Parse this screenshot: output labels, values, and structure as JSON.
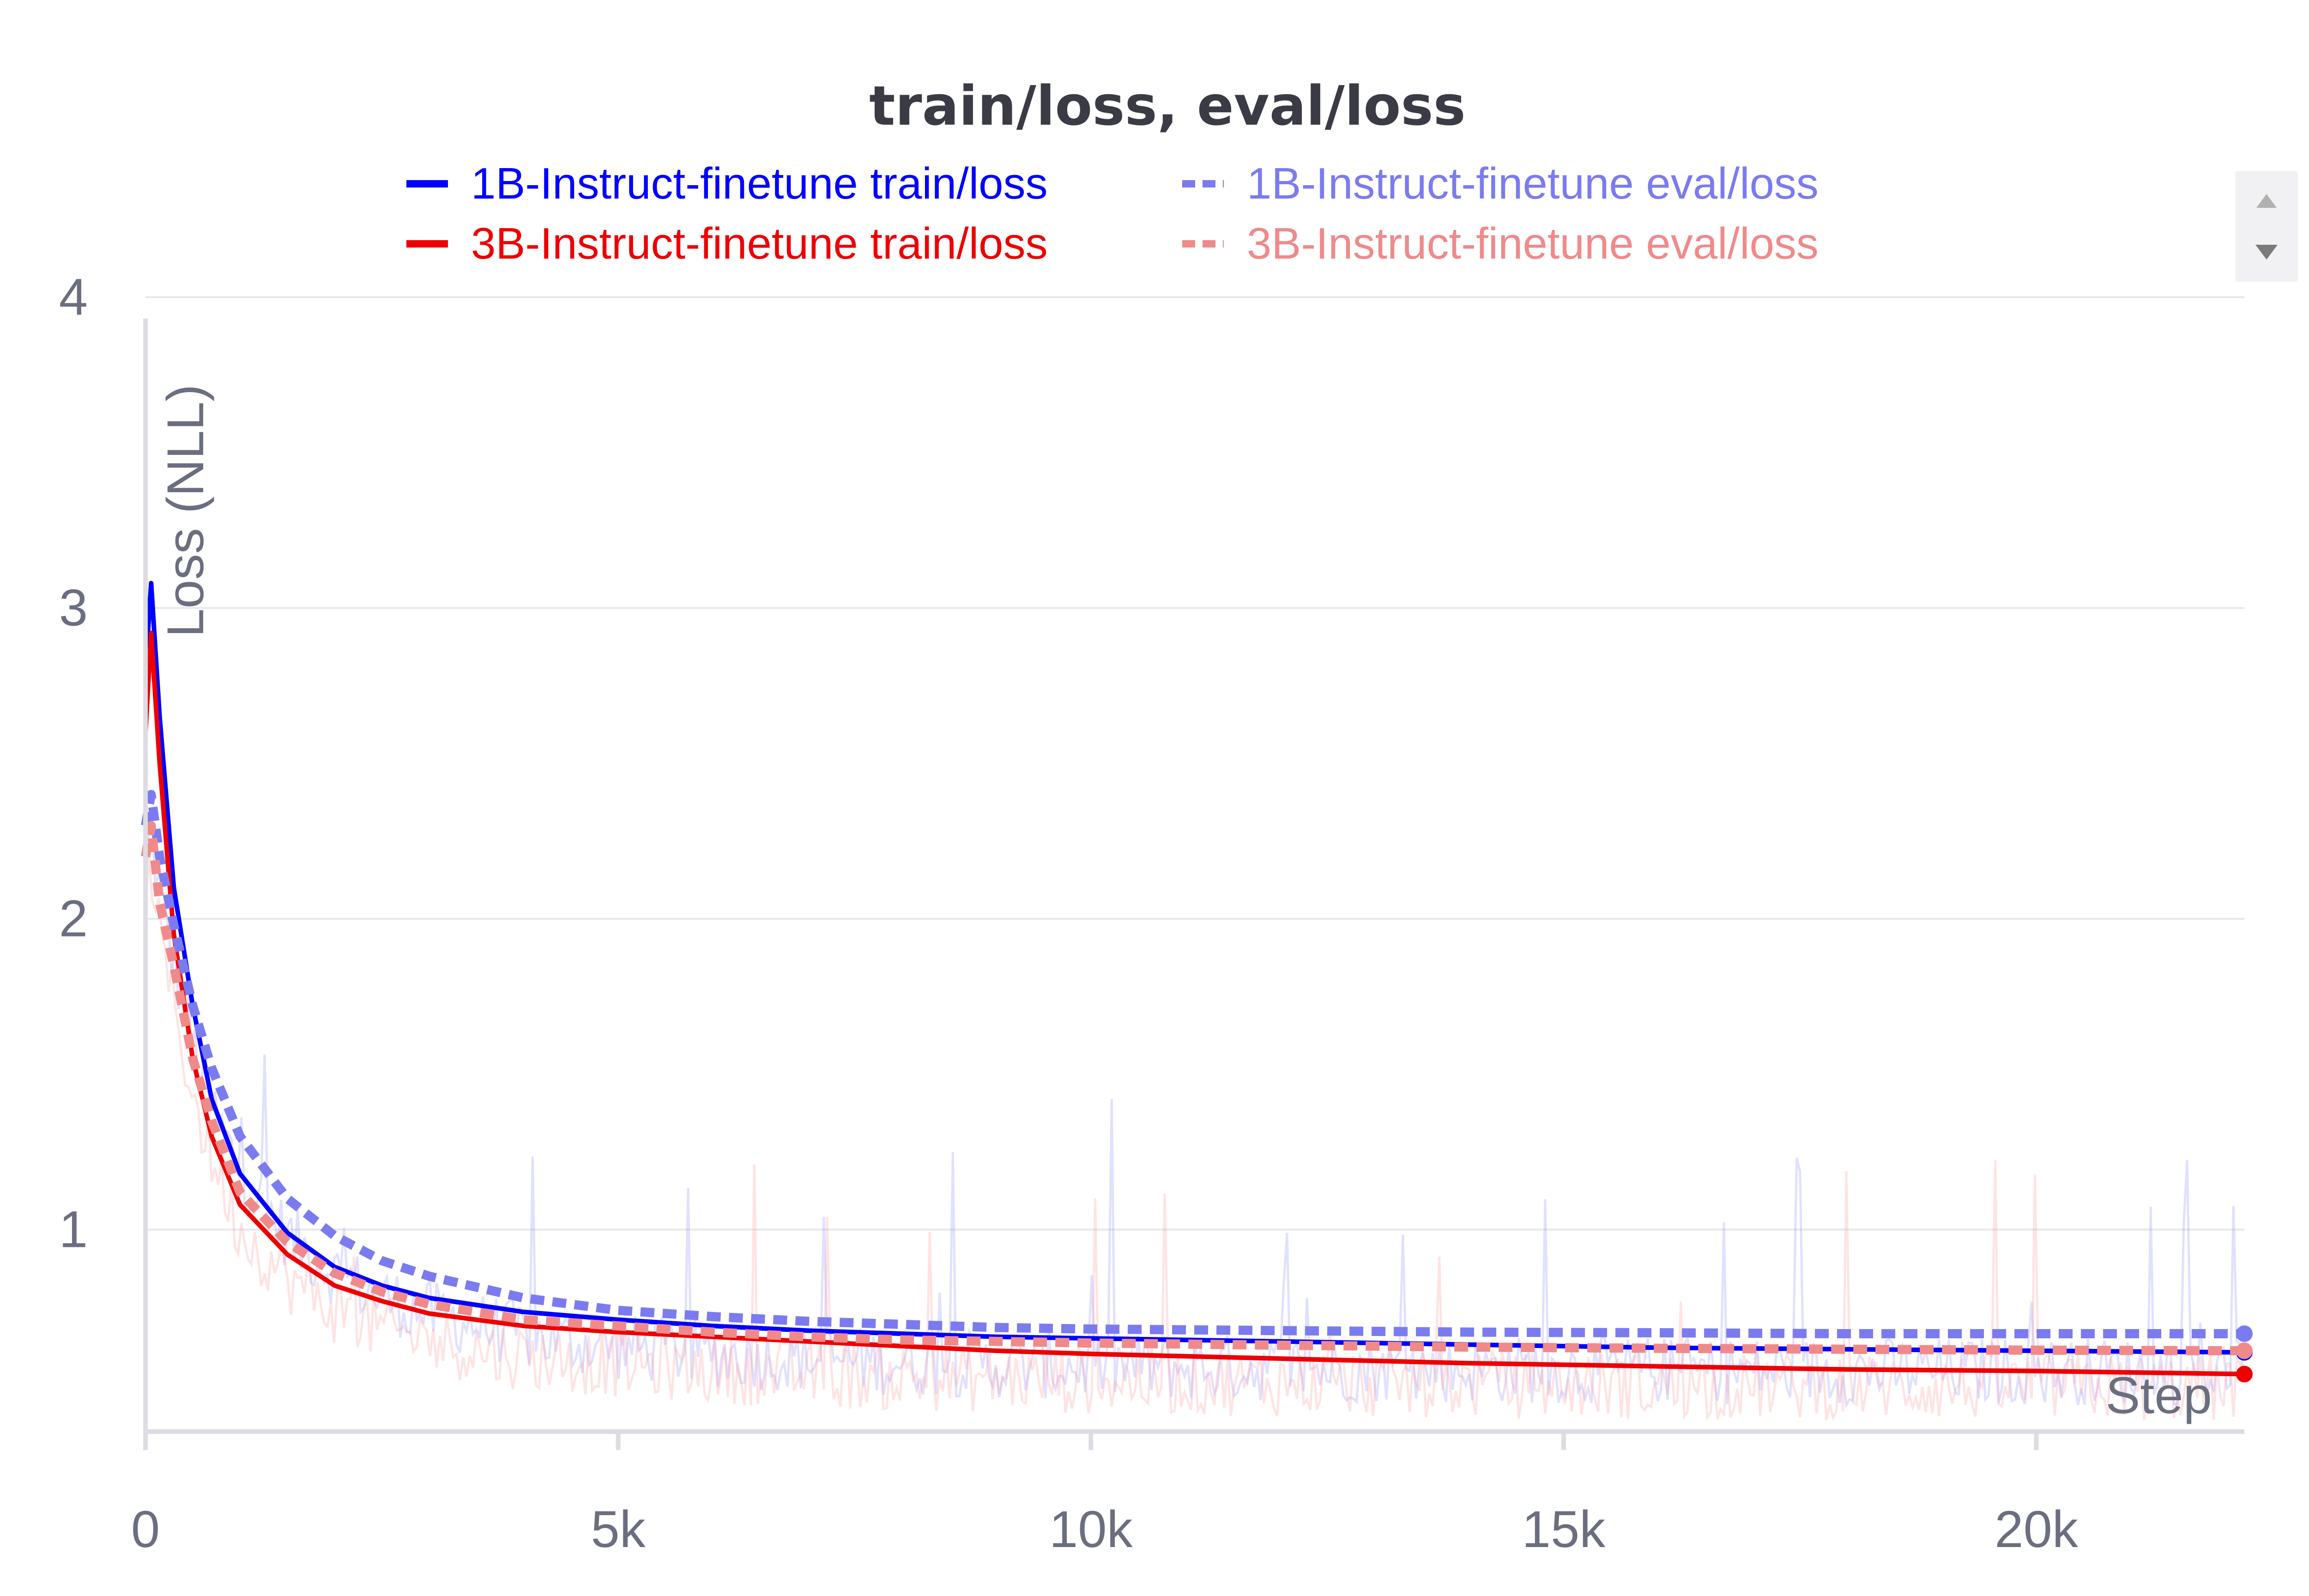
{
  "chart_data": {
    "type": "line",
    "title": "train/loss, eval/loss",
    "xlabel": "Step",
    "ylabel": "Loss (NLL)",
    "xlim": [
      0,
      22200
    ],
    "ylim": [
      0.35,
      4.05
    ],
    "x_ticks": [
      {
        "value": 0,
        "label": "0"
      },
      {
        "value": 5000,
        "label": "5k"
      },
      {
        "value": 10000,
        "label": "10k"
      },
      {
        "value": 15000,
        "label": "15k"
      },
      {
        "value": 20000,
        "label": "20k"
      }
    ],
    "y_ticks": [
      {
        "value": 1,
        "label": "1"
      },
      {
        "value": 2,
        "label": "2"
      },
      {
        "value": 3,
        "label": "3"
      },
      {
        "value": 4,
        "label": "4"
      }
    ],
    "grid": true,
    "legend_position": "top-center",
    "series": [
      {
        "name": "1B-Instruct-finetune train/loss",
        "color": "#0000ff",
        "style": "solid",
        "x": [
          0,
          60,
          150,
          300,
          500,
          700,
          1000,
          1500,
          2000,
          2500,
          3000,
          4000,
          5000,
          6000,
          7000,
          8000,
          9000,
          10000,
          12000,
          14000,
          16000,
          18000,
          20000,
          22200
        ],
        "y": [
          2.8,
          3.08,
          2.65,
          2.1,
          1.72,
          1.42,
          1.18,
          0.99,
          0.88,
          0.82,
          0.78,
          0.735,
          0.71,
          0.69,
          0.675,
          0.665,
          0.655,
          0.65,
          0.64,
          0.63,
          0.62,
          0.615,
          0.61,
          0.605
        ]
      },
      {
        "name": "3B-Instruct-finetune train/loss",
        "color": "#ee0000",
        "style": "solid",
        "x": [
          0,
          60,
          150,
          300,
          500,
          700,
          1000,
          1500,
          2000,
          2500,
          3000,
          4000,
          5000,
          6000,
          7000,
          8000,
          9000,
          10000,
          12000,
          14000,
          16000,
          18000,
          20000,
          22200
        ],
        "y": [
          2.6,
          2.92,
          2.5,
          1.95,
          1.55,
          1.3,
          1.08,
          0.92,
          0.82,
          0.77,
          0.73,
          0.69,
          0.67,
          0.655,
          0.64,
          0.625,
          0.61,
          0.6,
          0.585,
          0.57,
          0.56,
          0.55,
          0.545,
          0.535
        ]
      },
      {
        "name": "1B-Instruct-finetune eval/loss",
        "color": "#7b7bf0",
        "style": "dashed",
        "x": [
          0,
          60,
          150,
          300,
          500,
          700,
          1000,
          1500,
          2000,
          2500,
          3000,
          4000,
          5000,
          6000,
          7000,
          8000,
          9000,
          10000,
          12000,
          14000,
          16000,
          18000,
          20000,
          22200
        ],
        "y": [
          2.3,
          2.4,
          2.2,
          1.98,
          1.72,
          1.52,
          1.3,
          1.1,
          0.98,
          0.9,
          0.85,
          0.78,
          0.74,
          0.72,
          0.705,
          0.695,
          0.685,
          0.68,
          0.675,
          0.67,
          0.668,
          0.665,
          0.665,
          0.665
        ]
      },
      {
        "name": "3B-Instruct-finetune eval/loss",
        "color": "#f08a8a",
        "style": "dashed",
        "x": [
          0,
          60,
          150,
          300,
          500,
          700,
          1000,
          1500,
          2000,
          2500,
          3000,
          4000,
          5000,
          6000,
          7000,
          8000,
          9000,
          10000,
          12000,
          14000,
          16000,
          18000,
          20000,
          22200
        ],
        "y": [
          2.2,
          2.3,
          2.05,
          1.85,
          1.55,
          1.35,
          1.12,
          0.96,
          0.86,
          0.8,
          0.76,
          0.71,
          0.69,
          0.67,
          0.655,
          0.645,
          0.64,
          0.635,
          0.628,
          0.622,
          0.618,
          0.615,
          0.612,
          0.61
        ]
      }
    ]
  },
  "legend": [
    {
      "label": "1B-Instruct-finetune train/loss",
      "color": "#0000ff",
      "style": "solid"
    },
    {
      "label": "1B-Instruct-finetune eval/loss",
      "color": "#7b7bf0",
      "style": "dashed"
    },
    {
      "label": "3B-Instruct-finetune train/loss",
      "color": "#ee0000",
      "style": "solid"
    },
    {
      "label": "3B-Instruct-finetune eval/loss",
      "color": "#f08a8a",
      "style": "dashed"
    }
  ],
  "legend_scroll": {
    "up_icon": "triangle-up-icon",
    "down_icon": "triangle-down-icon"
  },
  "noise_colors": {
    "blue": "#9090ff",
    "red": "#ff9a9a"
  }
}
